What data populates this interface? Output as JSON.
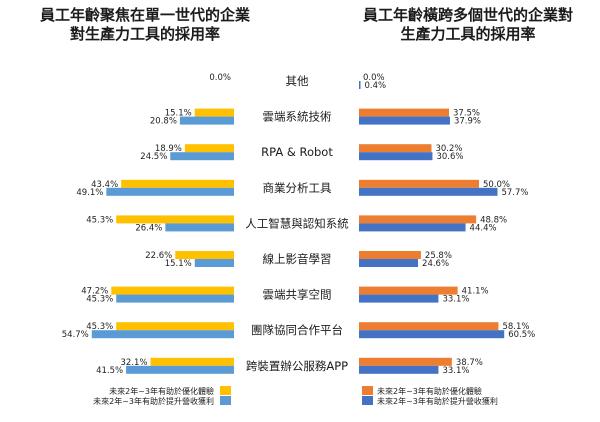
{
  "colors": {
    "yellow": "#FFC000",
    "blue_left": "#5B9BD5",
    "orange": "#ED7D31",
    "blue_right": "#4472C4"
  },
  "chart_data": [
    {
      "type": "bar",
      "orientation": "horizontal-mirrored",
      "title": "員工年齡聚焦在單一世代的企業對生產力工具的採用率",
      "title_lines": [
        "員工年齡聚焦在單一世代的企業",
        "對生產力工具的採用率"
      ],
      "categories": [
        "其他",
        "雲端系統技術",
        "RPA & Robot",
        "商業分析工具",
        "人工智慧與認知系統",
        "線上影音學習",
        "雲端共享空間",
        "團隊協同合作平台",
        "跨裝置辦公服務APP"
      ],
      "series": [
        {
          "name": "未來2年~3年有助於優化體驗",
          "color": "#FFC000",
          "values": [
            0.0,
            15.1,
            18.9,
            43.4,
            45.3,
            22.6,
            47.2,
            45.3,
            32.1
          ],
          "labels": [
            "0.0%",
            "15.1%",
            "18.9%",
            "43.4%",
            "45.3%",
            "22.6%",
            "47.2%",
            "45.3%",
            "32.1%"
          ]
        },
        {
          "name": "未來2年~3年有助於提升營收獲利",
          "color": "#5B9BD5",
          "values": [
            null,
            20.8,
            24.5,
            49.1,
            26.4,
            15.1,
            45.3,
            54.7,
            41.5
          ],
          "labels": [
            "",
            "20.8%",
            "24.5%",
            "49.1%",
            "26.4%",
            "15.1%",
            "45.3%",
            "54.7%",
            "41.5%"
          ]
        }
      ],
      "xlim": [
        0,
        60
      ],
      "grid": false,
      "legend": "bottom"
    },
    {
      "type": "bar",
      "orientation": "horizontal",
      "title": "員工年齡橫跨多個世代的企業對生產力工具的採用率",
      "title_lines": [
        "員工年齡橫跨多個世代的企業對",
        "生產力工具的採用率"
      ],
      "categories": [
        "其他",
        "雲端系統技術",
        "RPA & Robot",
        "商業分析工具",
        "人工智慧與認知系統",
        "線上影音學習",
        "雲端共享空間",
        "團隊協同合作平台",
        "跨裝置辦公服務APP"
      ],
      "series": [
        {
          "name": "未來2年~3年有助於優化體驗",
          "color": "#ED7D31",
          "values": [
            0.0,
            37.5,
            30.2,
            50.0,
            48.8,
            25.8,
            41.1,
            58.1,
            38.7
          ],
          "labels": [
            "0.0%",
            "37.5%",
            "30.2%",
            "50.0%",
            "48.8%",
            "25.8%",
            "41.1%",
            "58.1%",
            "38.7%"
          ]
        },
        {
          "name": "未來2年~3年有助於提升營收獲利",
          "color": "#4472C4",
          "values": [
            0.4,
            37.9,
            30.6,
            57.7,
            44.4,
            24.6,
            33.1,
            60.5,
            33.1
          ],
          "labels": [
            "0.4%",
            "37.9%",
            "30.6%",
            "57.7%",
            "44.4%",
            "24.6%",
            "33.1%",
            "60.5%",
            "33.1%"
          ]
        }
      ],
      "xlim": [
        0,
        65
      ],
      "grid": false,
      "legend": "bottom"
    }
  ]
}
